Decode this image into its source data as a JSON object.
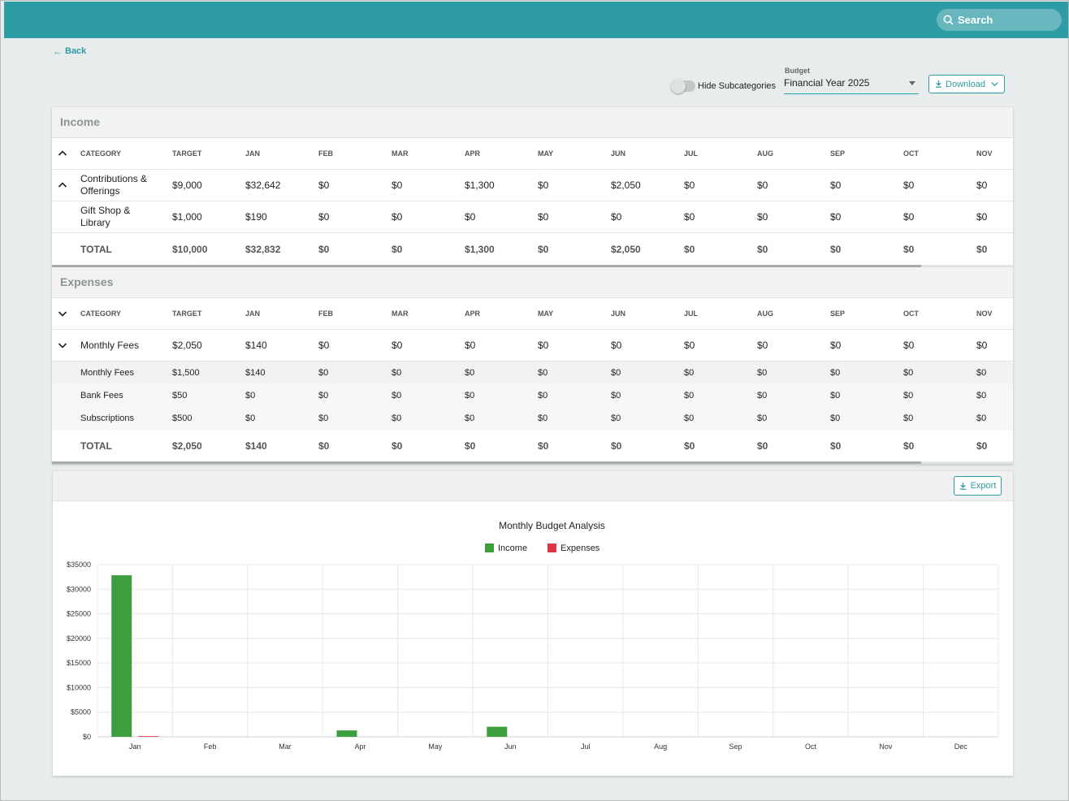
{
  "header": {
    "search_placeholder": "Search"
  },
  "nav": {
    "back_label": "Back"
  },
  "controls": {
    "hide_subcategories_label": "Hide Subcategories",
    "hide_subcategories_on": false,
    "budget_label": "Budget",
    "budget_value": "Financial Year 2025",
    "download_label": "Download"
  },
  "income": {
    "title": "Income",
    "columns": [
      "CATEGORY",
      "TARGET",
      "JAN",
      "FEB",
      "MAR",
      "APR",
      "MAY",
      "JUN",
      "JUL",
      "AUG",
      "SEP",
      "OCT",
      "NOV"
    ],
    "rows": [
      {
        "category": "Contributions & Offerings",
        "values": [
          "$9,000",
          "$32,642",
          "$0",
          "$0",
          "$1,300",
          "$0",
          "$2,050",
          "$0",
          "$0",
          "$0",
          "$0",
          "$0"
        ]
      },
      {
        "category": "Gift Shop & Library",
        "values": [
          "$1,000",
          "$190",
          "$0",
          "$0",
          "$0",
          "$0",
          "$0",
          "$0",
          "$0",
          "$0",
          "$0",
          "$0"
        ]
      }
    ],
    "total": {
      "label": "TOTAL",
      "values": [
        "$10,000",
        "$32,832",
        "$0",
        "$0",
        "$1,300",
        "$0",
        "$2,050",
        "$0",
        "$0",
        "$0",
        "$0",
        "$0"
      ]
    }
  },
  "expenses": {
    "title": "Expenses",
    "columns": [
      "CATEGORY",
      "TARGET",
      "JAN",
      "FEB",
      "MAR",
      "APR",
      "MAY",
      "JUN",
      "JUL",
      "AUG",
      "SEP",
      "OCT",
      "NOV"
    ],
    "group": {
      "category": "Monthly Fees",
      "values": [
        "$2,050",
        "$140",
        "$0",
        "$0",
        "$0",
        "$0",
        "$0",
        "$0",
        "$0",
        "$0",
        "$0",
        "$0"
      ]
    },
    "subrows": [
      {
        "category": "Monthly Fees",
        "values": [
          "$1,500",
          "$140",
          "$0",
          "$0",
          "$0",
          "$0",
          "$0",
          "$0",
          "$0",
          "$0",
          "$0",
          "$0"
        ]
      },
      {
        "category": "Bank Fees",
        "values": [
          "$50",
          "$0",
          "$0",
          "$0",
          "$0",
          "$0",
          "$0",
          "$0",
          "$0",
          "$0",
          "$0",
          "$0"
        ]
      },
      {
        "category": "Subscriptions",
        "values": [
          "$500",
          "$0",
          "$0",
          "$0",
          "$0",
          "$0",
          "$0",
          "$0",
          "$0",
          "$0",
          "$0",
          "$0"
        ]
      }
    ],
    "total": {
      "label": "TOTAL",
      "values": [
        "$2,050",
        "$140",
        "$0",
        "$0",
        "$0",
        "$0",
        "$0",
        "$0",
        "$0",
        "$0",
        "$0",
        "$0"
      ]
    }
  },
  "chart_panel": {
    "export_label": "Export"
  },
  "chart_data": {
    "type": "bar",
    "title": "Monthly Budget Analysis",
    "categories": [
      "Jan",
      "Feb",
      "Mar",
      "Apr",
      "May",
      "Jun",
      "Jul",
      "Aug",
      "Sep",
      "Oct",
      "Nov",
      "Dec"
    ],
    "series": [
      {
        "name": "Income",
        "color": "#3c9e3c",
        "values": [
          32832,
          0,
          0,
          1300,
          0,
          2050,
          0,
          0,
          0,
          0,
          0,
          0
        ]
      },
      {
        "name": "Expenses",
        "color": "#dc3545",
        "values": [
          140,
          0,
          0,
          0,
          0,
          0,
          0,
          0,
          0,
          0,
          0,
          0
        ]
      }
    ],
    "ylim": [
      0,
      35000
    ],
    "yticks": [
      0,
      5000,
      10000,
      15000,
      20000,
      25000,
      30000,
      35000
    ],
    "ytick_labels": [
      "$0",
      "$5000",
      "$10000",
      "$15000",
      "$20000",
      "$25000",
      "$30000",
      "$35000"
    ],
    "grid": true,
    "legend_position": "top"
  }
}
